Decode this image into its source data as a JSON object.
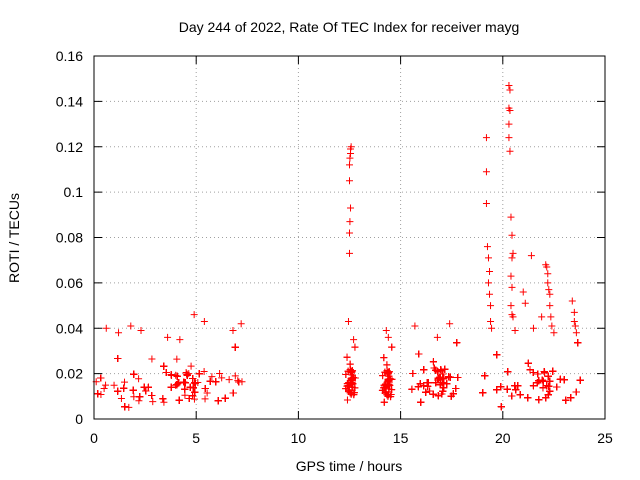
{
  "chart_data": {
    "type": "scatter",
    "title": "Day 244 of 2022, Rate Of TEC Index for receiver mayg",
    "xlabel": "GPS time / hours",
    "ylabel": "ROTI / TECUs",
    "xlim": [
      0,
      25
    ],
    "ylim": [
      0,
      0.16
    ],
    "xticks": [
      "0",
      "5",
      "10",
      "15",
      "20",
      "25"
    ],
    "yticks": [
      "0",
      "0.02",
      "0.04",
      "0.06",
      "0.08",
      "0.1",
      "0.12",
      "0.14",
      "0.16"
    ],
    "grid": true,
    "marker": "plus",
    "series_color": "#ff0000",
    "dense_segments": [
      {
        "x_start": 0.0,
        "x_end": 7.4,
        "y_low": 0.005,
        "y_high": 0.032
      },
      {
        "x_start": 12.3,
        "x_end": 12.8,
        "y_low": 0.008,
        "y_high": 0.032
      },
      {
        "x_start": 14.1,
        "x_end": 14.6,
        "y_low": 0.007,
        "y_high": 0.032
      },
      {
        "x_start": 15.5,
        "x_end": 17.9,
        "y_low": 0.007,
        "y_high": 0.034
      },
      {
        "x_start": 18.9,
        "x_end": 24.0,
        "y_low": 0.005,
        "y_high": 0.034
      }
    ],
    "points": [
      [
        0.6,
        0.04
      ],
      [
        1.2,
        0.038
      ],
      [
        1.8,
        0.041
      ],
      [
        2.3,
        0.039
      ],
      [
        3.6,
        0.036
      ],
      [
        4.2,
        0.035
      ],
      [
        4.9,
        0.046
      ],
      [
        5.4,
        0.043
      ],
      [
        6.8,
        0.039
      ],
      [
        7.2,
        0.042
      ],
      [
        12.45,
        0.043
      ],
      [
        12.5,
        0.073
      ],
      [
        12.5,
        0.082
      ],
      [
        12.52,
        0.087
      ],
      [
        12.55,
        0.093
      ],
      [
        12.5,
        0.105
      ],
      [
        12.5,
        0.112
      ],
      [
        12.52,
        0.115
      ],
      [
        12.55,
        0.117
      ],
      [
        12.55,
        0.119
      ],
      [
        12.58,
        0.12
      ],
      [
        12.7,
        0.035
      ],
      [
        14.3,
        0.039
      ],
      [
        14.4,
        0.036
      ],
      [
        15.7,
        0.041
      ],
      [
        16.8,
        0.036
      ],
      [
        17.4,
        0.042
      ],
      [
        19.2,
        0.124
      ],
      [
        19.2,
        0.109
      ],
      [
        19.2,
        0.095
      ],
      [
        19.25,
        0.076
      ],
      [
        19.3,
        0.071
      ],
      [
        19.35,
        0.065
      ],
      [
        19.3,
        0.06
      ],
      [
        19.35,
        0.055
      ],
      [
        19.4,
        0.05
      ],
      [
        19.4,
        0.043
      ],
      [
        19.45,
        0.04
      ],
      [
        20.3,
        0.147
      ],
      [
        20.35,
        0.145
      ],
      [
        20.3,
        0.137
      ],
      [
        20.35,
        0.136
      ],
      [
        20.3,
        0.13
      ],
      [
        20.3,
        0.124
      ],
      [
        20.35,
        0.118
      ],
      [
        20.4,
        0.089
      ],
      [
        20.45,
        0.081
      ],
      [
        20.45,
        0.071
      ],
      [
        20.5,
        0.073
      ],
      [
        20.4,
        0.063
      ],
      [
        20.45,
        0.058
      ],
      [
        20.4,
        0.05
      ],
      [
        20.45,
        0.046
      ],
      [
        20.5,
        0.045
      ],
      [
        20.6,
        0.039
      ],
      [
        21.0,
        0.056
      ],
      [
        21.1,
        0.051
      ],
      [
        21.4,
        0.072
      ],
      [
        21.5,
        0.04
      ],
      [
        21.9,
        0.045
      ],
      [
        22.1,
        0.068
      ],
      [
        22.15,
        0.067
      ],
      [
        22.2,
        0.064
      ],
      [
        22.2,
        0.06
      ],
      [
        22.25,
        0.057
      ],
      [
        22.3,
        0.055
      ],
      [
        22.3,
        0.05
      ],
      [
        22.35,
        0.045
      ],
      [
        22.4,
        0.041
      ],
      [
        22.5,
        0.038
      ],
      [
        23.4,
        0.052
      ],
      [
        23.5,
        0.047
      ],
      [
        23.5,
        0.043
      ],
      [
        23.55,
        0.041
      ],
      [
        23.6,
        0.038
      ]
    ]
  }
}
